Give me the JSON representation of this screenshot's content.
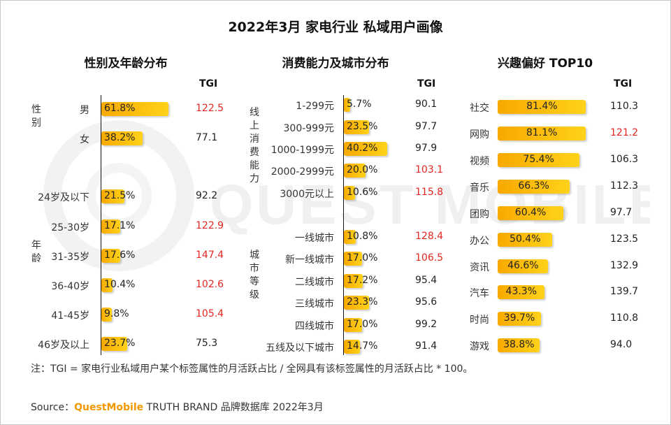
{
  "title": "2022年3月 家电行业 私域用户画像",
  "tgi_header": "TGI",
  "note": "注：TGI = 家电行业私域用户某个标签属性的月活跃占比 / 全网具有该标签属性的月活跃占比 * 100。",
  "source": {
    "prefix": "Source：",
    "brand": "QuestMobile",
    "rest": " TRUTH BRAND 品牌数据库 2022年3月"
  },
  "watermark": "QUEST MOBILE",
  "colors": {
    "bar_start": "#f8a900",
    "bar_end": "#ffd21a",
    "highlight_tgi": "#e5261f"
  },
  "chart_data": [
    {
      "type": "bar",
      "title": "性别及年龄分布",
      "groups": [
        {
          "name": "性别",
          "categories": [
            "男",
            "女"
          ],
          "values": [
            61.8,
            38.2
          ],
          "tgi": [
            122.5,
            77.1
          ],
          "tgi_high": [
            true,
            false
          ]
        },
        {
          "name": "年龄",
          "categories": [
            "24岁及以下",
            "25-30岁",
            "31-35岁",
            "36-40岁",
            "41-45岁",
            "46岁及以上"
          ],
          "values": [
            21.5,
            17.1,
            17.6,
            10.4,
            9.8,
            23.7
          ],
          "tgi": [
            92.2,
            122.9,
            147.4,
            102.6,
            105.4,
            75.3
          ],
          "tgi_high": [
            false,
            true,
            true,
            true,
            true,
            false
          ]
        }
      ],
      "unit": "%"
    },
    {
      "type": "bar",
      "title": "消费能力及城市分布",
      "groups": [
        {
          "name": "线上消费能力",
          "categories": [
            "1-299元",
            "300-999元",
            "1000-1999元",
            "2000-2999元",
            "3000元以上"
          ],
          "values": [
            5.7,
            23.5,
            40.2,
            20.0,
            10.6
          ],
          "tgi": [
            90.1,
            97.7,
            97.9,
            103.1,
            115.8
          ],
          "tgi_high": [
            false,
            false,
            false,
            true,
            true
          ]
        },
        {
          "name": "城市等级",
          "categories": [
            "一线城市",
            "新一线城市",
            "二线城市",
            "三线城市",
            "四线城市",
            "五线及以下城市"
          ],
          "values": [
            10.8,
            17.0,
            17.2,
            23.3,
            17.0,
            14.7
          ],
          "tgi": [
            128.4,
            106.5,
            95.4,
            95.6,
            99.2,
            91.4
          ],
          "tgi_high": [
            true,
            true,
            false,
            false,
            false,
            false
          ]
        }
      ],
      "unit": "%"
    },
    {
      "type": "bar",
      "title": "兴趣偏好 TOP10",
      "groups": [
        {
          "name": "",
          "categories": [
            "社交",
            "网购",
            "视频",
            "音乐",
            "团购",
            "办公",
            "资讯",
            "汽车",
            "时尚",
            "游戏"
          ],
          "values": [
            81.4,
            81.1,
            75.4,
            66.3,
            60.4,
            50.4,
            46.6,
            43.3,
            39.7,
            38.8
          ],
          "tgi": [
            110.3,
            121.2,
            106.3,
            112.3,
            97.7,
            123.5,
            132.9,
            139.7,
            110.8,
            94.0
          ],
          "tgi_high": [
            false,
            true,
            false,
            false,
            false,
            false,
            false,
            false,
            false,
            false
          ]
        }
      ],
      "unit": "%"
    }
  ]
}
